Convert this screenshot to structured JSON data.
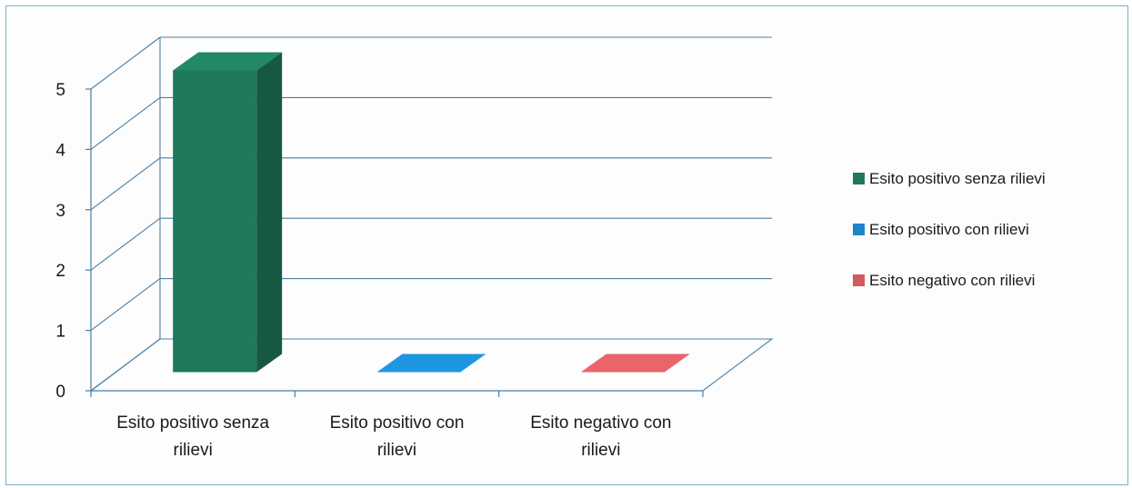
{
  "chart_data": {
    "type": "bar",
    "style": "3d-column",
    "categories": [
      "Esito positivo senza rilievi",
      "Esito positivo con rilievi",
      "Esito negativo con rilievi"
    ],
    "category_label_lines": [
      [
        "Esito positivo senza",
        "rilievi"
      ],
      [
        "Esito positivo con",
        "rilievi"
      ],
      [
        "Esito negativo con",
        "rilievi"
      ]
    ],
    "values": [
      5,
      0,
      0
    ],
    "colors": [
      "#1f7a5a",
      "#1c86c8",
      "#d05a5e"
    ],
    "ylim": [
      0,
      5
    ],
    "yticks": [
      "0",
      "1",
      "2",
      "3",
      "4",
      "5"
    ],
    "grid": true,
    "legend_position": "right",
    "legend": [
      "Esito positivo senza rilievi",
      "Esito positivo con rilievi",
      "Esito negativo con rilievi"
    ],
    "title": "",
    "xlabel": "",
    "ylabel": ""
  }
}
